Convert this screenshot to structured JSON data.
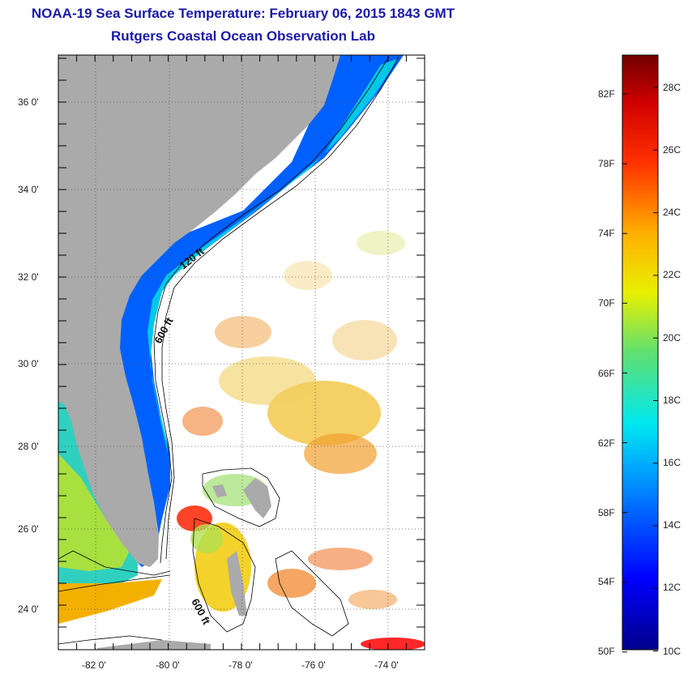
{
  "title": {
    "line1": "NOAA-19 Sea Surface Temperature:  February 06, 2015 1843 GMT",
    "line2": "Rutgers Coastal Ocean Observation Lab"
  },
  "axes": {
    "lat_labels": [
      "36 0'",
      "34 0'",
      "32 0'",
      "30 0'",
      "28 0'",
      "26 0'",
      "24 0'"
    ],
    "lon_labels": [
      "-82 0'",
      "-80 0'",
      "-78 0'",
      "-76 0'",
      "-74 0'"
    ],
    "lat_range": [
      23,
      37
    ],
    "lon_range": [
      -83,
      -73
    ]
  },
  "isobaths": {
    "label_120": "120 ft",
    "label_600_north": "600 ft",
    "label_600_south": "600 ft"
  },
  "colorbar": {
    "fahrenheit_labels": [
      "82F",
      "78F",
      "74F",
      "70F",
      "66F",
      "62F",
      "58F",
      "54F",
      "50F"
    ],
    "celsius_labels": [
      "28C",
      "26C",
      "24C",
      "22C",
      "20C",
      "18C",
      "16C",
      "14C",
      "12C",
      "10C"
    ],
    "range_c": [
      10,
      29
    ]
  },
  "colors": {
    "land": "#aaaaaa",
    "title": "#1a1aa8",
    "grid": "#000000"
  }
}
